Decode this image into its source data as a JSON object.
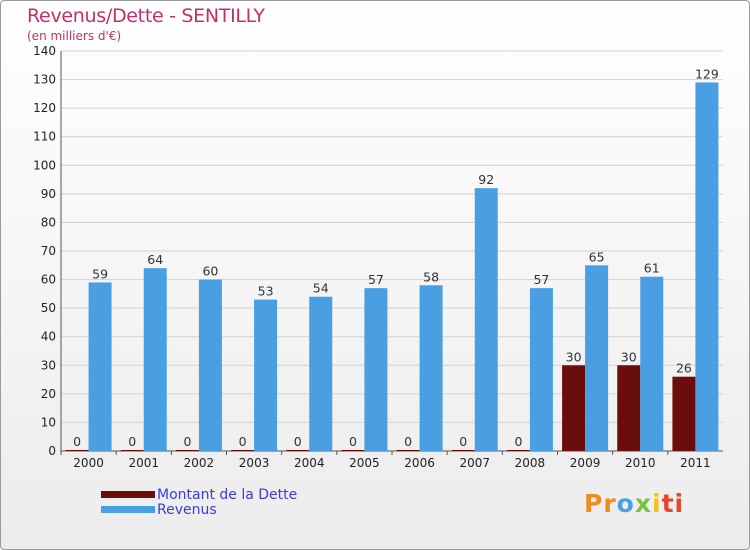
{
  "header": {
    "title": "Revenus/Dette - SENTILLY",
    "subtitle": "(en milliers d'€)"
  },
  "chart_data": {
    "type": "bar",
    "title": "Revenus/Dette - SENTILLY",
    "ylabel": "(en milliers d'€)",
    "xlabel": "",
    "categories": [
      "2000",
      "2001",
      "2002",
      "2003",
      "2004",
      "2005",
      "2006",
      "2007",
      "2008",
      "2009",
      "2010",
      "2011"
    ],
    "series": [
      {
        "name": "Montant de la Dette",
        "color": "#6b0d0d",
        "values": [
          0,
          0,
          0,
          0,
          0,
          0,
          0,
          0,
          0,
          30,
          30,
          26
        ]
      },
      {
        "name": "Revenus",
        "color": "#4a9fe2",
        "values": [
          59,
          64,
          60,
          53,
          54,
          57,
          58,
          92,
          57,
          65,
          61,
          129
        ]
      }
    ],
    "ylim": [
      0,
      140
    ],
    "yticks": [
      0,
      10,
      20,
      30,
      40,
      50,
      60,
      70,
      80,
      90,
      100,
      110,
      120,
      130,
      140
    ],
    "grid": true,
    "legend": "bottom-left"
  },
  "legend": {
    "items": [
      {
        "label": "Montant de la Dette",
        "color": "#6b0d0d"
      },
      {
        "label": "Revenus",
        "color": "#4a9fe2"
      }
    ]
  },
  "logo": {
    "letters": [
      {
        "ch": "P",
        "color": "#f08a1c"
      },
      {
        "ch": "r",
        "color": "#f08a1c"
      },
      {
        "ch": "o",
        "color": "#4aa0e0"
      },
      {
        "ch": "x",
        "color": "#7cc142"
      },
      {
        "ch": "i",
        "color": "#f2c21b"
      },
      {
        "ch": "t",
        "color": "#e8462b"
      },
      {
        "ch": "i",
        "color": "#e8462b"
      }
    ]
  }
}
